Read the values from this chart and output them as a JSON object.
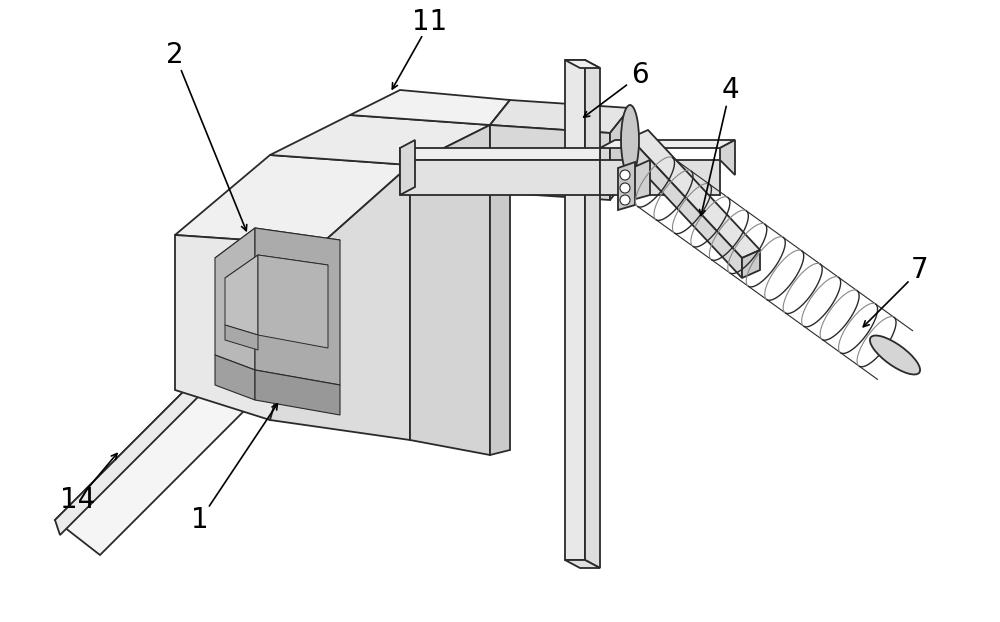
{
  "background_color": "#ffffff",
  "line_color": "#2a2a2a",
  "label_color": "#000000",
  "label_fontsize": 20,
  "figsize": [
    10.0,
    6.22
  ],
  "dpi": 100
}
